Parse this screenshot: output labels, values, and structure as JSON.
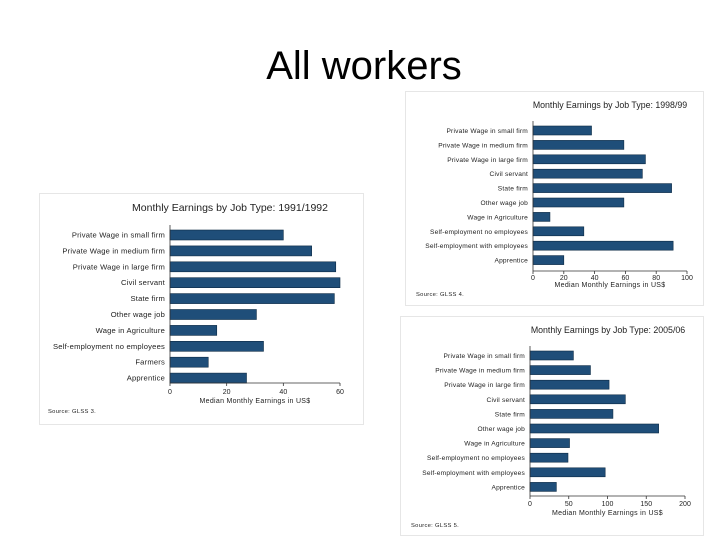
{
  "slide": {
    "title": "All workers"
  },
  "chart_data": [
    {
      "type": "bar",
      "orientation": "horizontal",
      "title": "Monthly Earnings by Job Type: 1991/1992",
      "xlabel": "Median Monthly Earnings in US$",
      "source": "Source: GLSS 3.",
      "xlim": [
        0,
        60
      ],
      "xticks": [
        0,
        20,
        40,
        60
      ],
      "categories": [
        "Private Wage in small firm",
        "Private Wage in medium firm",
        "Private Wage in large firm",
        "Civil servant",
        "State firm",
        "Other wage job",
        "Wage in Agriculture",
        "Self-employment no employees",
        "Farmers",
        "Apprentice"
      ],
      "values": [
        40,
        50,
        58.5,
        60,
        58,
        30.5,
        16.5,
        33,
        13.5,
        27
      ],
      "bar_color": "#1f4e79",
      "grid": false
    },
    {
      "type": "bar",
      "orientation": "horizontal",
      "title": "Monthly Earnings by Job Type: 1998/99",
      "xlabel": "Median Monthly Earnings in US$",
      "source": "Source: GLSS 4.",
      "xlim": [
        0,
        100
      ],
      "xticks": [
        0,
        20,
        40,
        60,
        80,
        100
      ],
      "categories": [
        "Private Wage in small firm",
        "Private Wage in medium firm",
        "Private Wage in large firm",
        "Civil servant",
        "State firm",
        "Other wage job",
        "Wage in Agriculture",
        "Self-employment no employees",
        "Self-employment with employees",
        "Apprentice"
      ],
      "values": [
        38,
        59,
        73,
        71,
        90,
        59,
        11,
        33,
        91,
        20
      ],
      "bar_color": "#1f4e79",
      "grid": false
    },
    {
      "type": "bar",
      "orientation": "horizontal",
      "title": "Monthly Earnings by Job Type: 2005/06",
      "xlabel": "Median Monthly Earnings in US$",
      "source": "Source: GLSS 5.",
      "xlim": [
        0,
        200
      ],
      "xticks": [
        0,
        50,
        100,
        150,
        200
      ],
      "categories": [
        "Private Wage in small firm",
        "Private Wage in medium firm",
        "Private Wage in large firm",
        "Civil servant",
        "State firm",
        "Other wage job",
        "Wage in Agriculture",
        "Self-employment no employees",
        "Self-employment with employees",
        "Apprentice"
      ],
      "values": [
        56,
        78,
        102,
        123,
        107,
        166,
        51,
        49,
        97,
        34
      ],
      "bar_color": "#1f4e79",
      "grid": false
    }
  ]
}
